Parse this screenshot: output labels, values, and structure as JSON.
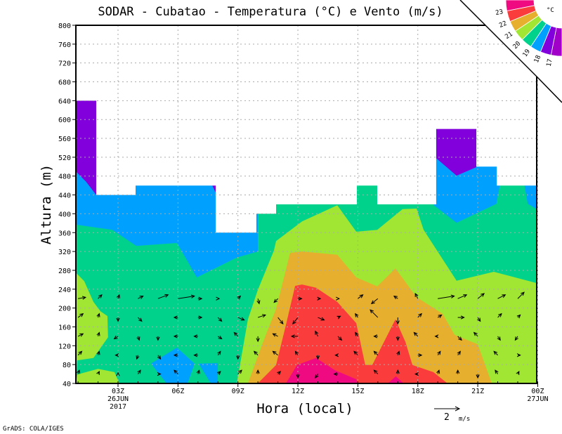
{
  "chart_data": {
    "type": "contour",
    "title": "SODAR - Cubatao - Temperatura (°C) e Vento (m/s)",
    "xlabel": "Hora (local)",
    "ylabel": "Altura (m)",
    "xlim": [
      0.9,
      24
    ],
    "ylim": [
      40,
      800
    ],
    "grid": true,
    "x_ticks": [
      {
        "value": 3,
        "label": "03Z",
        "sub": [
          "26JUN",
          "2017"
        ]
      },
      {
        "value": 6,
        "label": "06Z",
        "sub": []
      },
      {
        "value": 9,
        "label": "09Z",
        "sub": []
      },
      {
        "value": 12,
        "label": "12Z",
        "sub": []
      },
      {
        "value": 15,
        "label": "15Z",
        "sub": []
      },
      {
        "value": 18,
        "label": "18Z",
        "sub": []
      },
      {
        "value": 21,
        "label": "21Z",
        "sub": []
      },
      {
        "value": 24,
        "label": "00Z",
        "sub": [
          "27JUN"
        ]
      }
    ],
    "y_ticks": [
      "40",
      "80",
      "120",
      "160",
      "200",
      "240",
      "280",
      "320",
      "360",
      "400",
      "440",
      "480",
      "520",
      "560",
      "600",
      "640",
      "680",
      "720",
      "760",
      "800"
    ],
    "legend": {
      "placement": "top-right",
      "unit": "°C",
      "levels": [
        "23",
        "22",
        "21",
        "20",
        "19",
        "18",
        "17"
      ],
      "colors": [
        "#f00a82",
        "#fa3c3c",
        "#e6af2d",
        "#a0e632",
        "#00d28c",
        "#00a0ff",
        "#8200dc",
        "#a000c8"
      ]
    },
    "colors": {
      "magenta": "#f00a82",
      "red": "#fa3c3c",
      "orange": "#e6af2d",
      "lime": "#a0e632",
      "green": "#00d28c",
      "blue": "#00a0ff",
      "purple": "#8200dc"
    },
    "data_top": [
      [
        0.89,
        640
      ],
      [
        1.91,
        640
      ],
      [
        1.91,
        440
      ],
      [
        3.88,
        440
      ],
      [
        3.88,
        460
      ],
      [
        7.89,
        460
      ],
      [
        7.89,
        360
      ],
      [
        9.92,
        360
      ],
      [
        9.92,
        400
      ],
      [
        10.91,
        400
      ],
      [
        10.91,
        420
      ],
      [
        14.95,
        420
      ],
      [
        14.95,
        460
      ],
      [
        15.97,
        460
      ],
      [
        15.97,
        420
      ],
      [
        18.92,
        420
      ],
      [
        18.92,
        580
      ],
      [
        20.93,
        580
      ],
      [
        20.93,
        500
      ],
      [
        21.95,
        500
      ],
      [
        21.95,
        460
      ],
      [
        24,
        460
      ]
    ],
    "temperature_regions": [
      {
        "level": "19-20",
        "color": "green",
        "points": [
          [
            0.89,
            40
          ],
          [
            24,
            40
          ],
          [
            24,
            800
          ],
          [
            0.89,
            800
          ]
        ]
      },
      {
        "level": "18-19",
        "color": "blue",
        "points": [
          [
            0.89,
            800
          ],
          [
            10.0,
            800
          ],
          [
            10.0,
            320
          ],
          [
            8.94,
            307
          ],
          [
            6.94,
            265
          ],
          [
            5.95,
            338
          ],
          [
            3.91,
            332
          ],
          [
            2.72,
            366
          ],
          [
            0.89,
            377
          ]
        ]
      },
      {
        "level": "17-18",
        "color": "purple",
        "points": [
          [
            0.89,
            800
          ],
          [
            1.91,
            800
          ],
          [
            1.91,
            440
          ],
          [
            1.4,
            468
          ],
          [
            0.89,
            490
          ]
        ]
      },
      {
        "level": "17-18",
        "color": "purple",
        "points": [
          [
            7.6,
            470
          ],
          [
            7.89,
            470
          ],
          [
            7.89,
            445
          ]
        ]
      },
      {
        "level": "18-19",
        "color": "blue",
        "points": [
          [
            18.92,
            800
          ],
          [
            22.1,
            800
          ],
          [
            22.1,
            459
          ],
          [
            21.93,
            421
          ],
          [
            19.94,
            381
          ],
          [
            18.8,
            418
          ]
        ]
      },
      {
        "level": "18-19",
        "color": "blue",
        "points": [
          [
            23.3,
            470
          ],
          [
            24,
            470
          ],
          [
            24,
            410
          ],
          [
            23.5,
            421
          ]
        ]
      },
      {
        "level": "17-18",
        "color": "purple",
        "points": [
          [
            18.92,
            800
          ],
          [
            20.93,
            800
          ],
          [
            20.93,
            499
          ],
          [
            19.94,
            481
          ],
          [
            18.92,
            518
          ]
        ]
      },
      {
        "level": "20-21",
        "color": "lime",
        "points": [
          [
            0.89,
            40
          ],
          [
            0.89,
            275
          ],
          [
            1.31,
            257
          ],
          [
            1.77,
            213
          ],
          [
            2.12,
            193
          ],
          [
            2.47,
            183
          ],
          [
            2.5,
            138
          ],
          [
            1.77,
            94
          ],
          [
            0.96,
            89
          ]
        ]
      },
      {
        "level": "20-21",
        "color": "lime",
        "points": [
          [
            0.89,
            40
          ],
          [
            0.96,
            59
          ],
          [
            2.0,
            71
          ],
          [
            2.82,
            64
          ],
          [
            3.07,
            40
          ]
        ]
      },
      {
        "level": "18-19",
        "color": "blue",
        "points": [
          [
            5.43,
            40
          ],
          [
            4.65,
            82
          ],
          [
            5.95,
            116
          ],
          [
            6.83,
            82
          ],
          [
            6.48,
            40
          ]
        ]
      },
      {
        "level": "18-19",
        "color": "blue",
        "points": [
          [
            7.04,
            82
          ],
          [
            7.99,
            83
          ],
          [
            7.99,
            40
          ],
          [
            7.64,
            40
          ]
        ]
      },
      {
        "level": "20-21",
        "color": "lime",
        "points": [
          [
            8.94,
            40
          ],
          [
            9.5,
            176
          ],
          [
            9.99,
            238
          ],
          [
            10.8,
            322
          ],
          [
            10.91,
            342
          ],
          [
            12.21,
            384
          ],
          [
            13.97,
            418
          ],
          [
            14.92,
            362
          ],
          [
            15.97,
            366
          ],
          [
            17.24,
            410
          ],
          [
            17.94,
            411
          ],
          [
            18.29,
            366
          ],
          [
            19.94,
            258
          ],
          [
            21.8,
            277
          ],
          [
            24,
            253
          ],
          [
            24,
            40
          ]
        ]
      },
      {
        "level": "21-22",
        "color": "orange",
        "points": [
          [
            9.5,
            40
          ],
          [
            10.35,
            138
          ],
          [
            10.91,
            198
          ],
          [
            11.61,
            317
          ],
          [
            12.21,
            320
          ],
          [
            13.97,
            313
          ],
          [
            14.92,
            265
          ],
          [
            15.97,
            246
          ],
          [
            16.88,
            284
          ],
          [
            17.94,
            223
          ],
          [
            19.24,
            188
          ],
          [
            19.84,
            143
          ],
          [
            21.0,
            123
          ],
          [
            21.7,
            40
          ]
        ]
      },
      {
        "level": "22-23",
        "color": "red",
        "points": [
          [
            9.99,
            40
          ],
          [
            10.91,
            79
          ],
          [
            11.4,
            164
          ],
          [
            11.86,
            247
          ],
          [
            12.21,
            250
          ],
          [
            12.91,
            243
          ],
          [
            13.97,
            213
          ],
          [
            14.92,
            168
          ],
          [
            15.37,
            79
          ],
          [
            15.72,
            79
          ],
          [
            16.88,
            176
          ],
          [
            17.38,
            128
          ],
          [
            17.73,
            79
          ],
          [
            18.78,
            64
          ],
          [
            19.49,
            40
          ]
        ]
      },
      {
        "level": ">23",
        "color": "magenta",
        "points": [
          [
            11.4,
            40
          ],
          [
            11.96,
            79
          ],
          [
            12.91,
            94
          ],
          [
            13.86,
            68
          ],
          [
            14.92,
            49
          ],
          [
            15.0,
            40
          ]
        ]
      },
      {
        "level": ">23",
        "color": "magenta",
        "points": [
          [
            16.5,
            40
          ],
          [
            16.9,
            55
          ],
          [
            17.3,
            40
          ]
        ]
      }
    ],
    "wind": {
      "hours": [
        1,
        2,
        3,
        4,
        5,
        6,
        7,
        8,
        9,
        10,
        11,
        12,
        13,
        14,
        15,
        16,
        17,
        18,
        19,
        20,
        21,
        22,
        23
      ],
      "altitudes": [
        60,
        100,
        140,
        180,
        220
      ],
      "u": [
        [
          0.1,
          0.1,
          0.0,
          0.2,
          0.2,
          -0.3,
          0.1,
          0.2,
          0.3,
          0.0,
          0.2,
          0.0,
          -0.2,
          -0.3,
          0.0,
          -0.3,
          0.0,
          -0.2,
          0.1,
          0.0,
          0.0,
          -0.2,
          0.1
        ],
        [
          0.3,
          0.1,
          -0.2,
          -0.1,
          0.2,
          -0.3,
          -0.3,
          0.2,
          0.0,
          -0.3,
          -0.4,
          -0.2,
          0.0,
          -0.2,
          -0.3,
          -0.3,
          0.1,
          0.3,
          0.2,
          0.2,
          0.0,
          -0.3,
          0.2
        ],
        [
          0.4,
          0.1,
          -0.3,
          0.1,
          0.0,
          -0.3,
          -0.3,
          0.3,
          -0.3,
          0.0,
          -0.4,
          -0.5,
          -0.2,
          0.3,
          -0.2,
          -0.3,
          0.0,
          -0.3,
          -0.2,
          0.3,
          -0.3,
          0.2,
          -0.2
        ],
        [
          0.4,
          0.1,
          0.0,
          0.3,
          0.0,
          -0.3,
          0.3,
          0.3,
          0.5,
          0.6,
          0.4,
          -0.4,
          0.5,
          0.2,
          -0.2,
          -0.6,
          0.0,
          0.3,
          0.3,
          0.5,
          0.2,
          0.3,
          0.2
        ],
        [
          0.6,
          0.3,
          0.1,
          0.4,
          0.8,
          1.3,
          0.3,
          0.1,
          0.2,
          0.1,
          -0.3,
          0.3,
          0.2,
          0.1,
          0.4,
          -0.5,
          -0.3,
          -0.2,
          1.3,
          0.7,
          0.5,
          0.6,
          0.5
        ]
      ],
      "v": [
        [
          0.3,
          0.2,
          0.1,
          0.3,
          0.0,
          0.3,
          0.3,
          0.2,
          0.3,
          0.3,
          0.2,
          -0.3,
          -0.3,
          0.0,
          0.0,
          0.3,
          0.3,
          0.0,
          0.3,
          0.3,
          -0.3,
          0.3,
          0.2
        ],
        [
          0.3,
          0.3,
          0.0,
          -0.3,
          -0.3,
          0.0,
          0.0,
          0.3,
          -0.3,
          0.3,
          0.3,
          0.3,
          -0.3,
          0.0,
          0.3,
          0.3,
          0.3,
          0.0,
          0.3,
          0.3,
          0.0,
          0.3,
          0.0
        ],
        [
          0.2,
          0.3,
          -0.2,
          -0.3,
          -0.3,
          0.0,
          0.0,
          -0.2,
          0.3,
          -0.4,
          0.2,
          0.0,
          0.4,
          -0.3,
          0.3,
          0.0,
          -0.3,
          0.3,
          0.0,
          -0.3,
          0.3,
          -0.3,
          -0.3
        ],
        [
          0.3,
          0.3,
          -0.3,
          -0.3,
          0.0,
          0.0,
          0.0,
          -0.3,
          -0.2,
          0.2,
          -0.5,
          -0.5,
          -0.2,
          0.1,
          0.3,
          0.6,
          -0.5,
          0.3,
          0.2,
          0.0,
          -0.3,
          0.3,
          0.2
        ],
        [
          0.1,
          0.3,
          0.3,
          0.2,
          0.3,
          0.2,
          0.0,
          0.0,
          0.2,
          -0.4,
          -0.3,
          0.0,
          0.0,
          0.0,
          0.3,
          -0.4,
          0.2,
          0.4,
          0.2,
          0.3,
          0.4,
          0.3,
          0.5
        ]
      ],
      "reference_vector": {
        "value": 2,
        "label": "2",
        "unit": "m/s"
      }
    }
  },
  "credit": "GrADS: COLA/IGES"
}
